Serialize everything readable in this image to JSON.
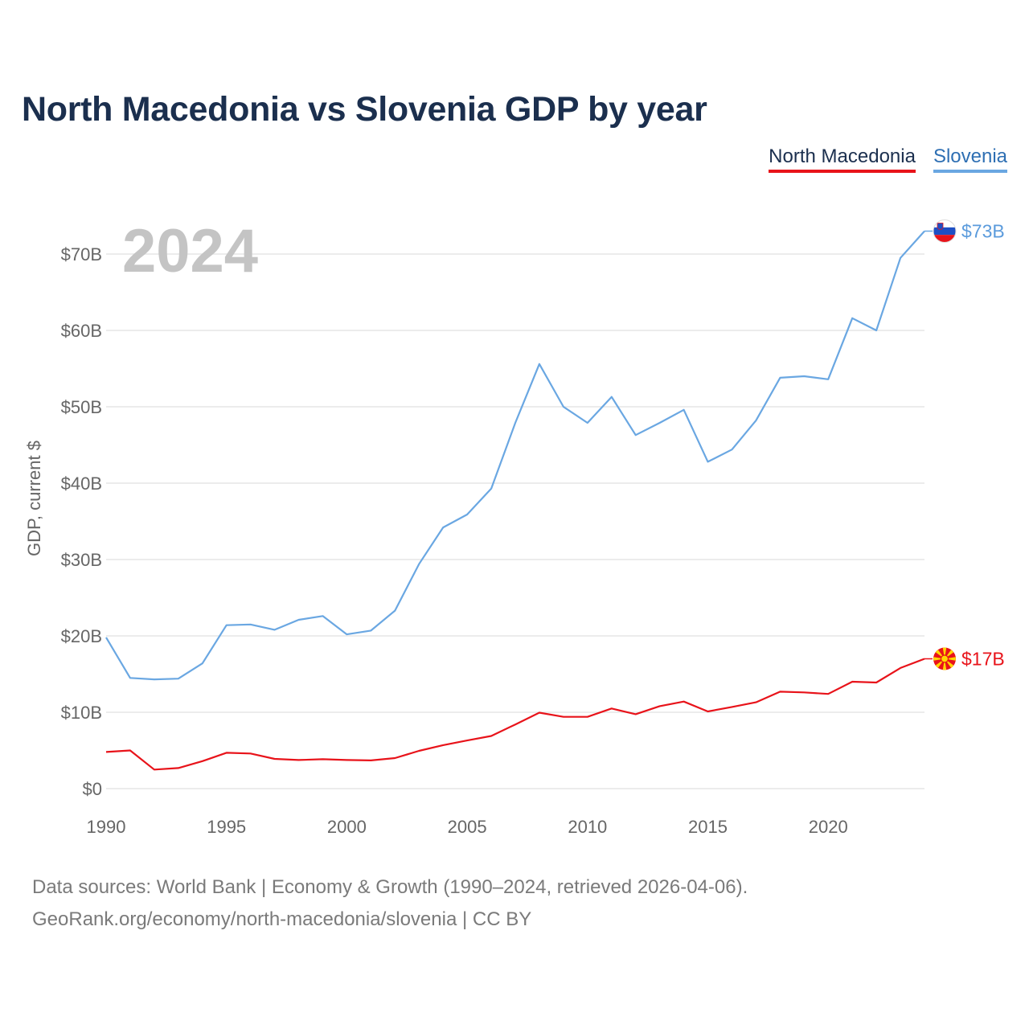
{
  "title": "North Macedonia vs Slovenia GDP by year",
  "legend": {
    "north_macedonia": "North Macedonia",
    "slovenia": "Slovenia"
  },
  "year_display": "2024",
  "footer": {
    "line1": "Data sources: World Bank | Economy & Growth (1990–2024, retrieved 2026-04-06).",
    "line2": "GeoRank.org/economy/north-macedonia/slovenia | CC BY"
  },
  "chart_data": {
    "type": "line",
    "title": "North Macedonia vs Slovenia GDP by year",
    "xlabel": "",
    "ylabel": "GDP, current $",
    "xlim": [
      1990,
      2024
    ],
    "ylim": [
      0,
      75
    ],
    "x_ticks": [
      1990,
      1995,
      2000,
      2005,
      2010,
      2015,
      2020
    ],
    "y_ticks": [
      0,
      10,
      20,
      30,
      40,
      50,
      60,
      70
    ],
    "y_tick_labels": [
      "$0",
      "$10B",
      "$20B",
      "$30B",
      "$40B",
      "$50B",
      "$60B",
      "$70B"
    ],
    "x": [
      1990,
      1991,
      1992,
      1993,
      1994,
      1995,
      1996,
      1997,
      1998,
      1999,
      2000,
      2001,
      2002,
      2003,
      2004,
      2005,
      2006,
      2007,
      2008,
      2009,
      2010,
      2011,
      2012,
      2013,
      2014,
      2015,
      2016,
      2017,
      2018,
      2019,
      2020,
      2021,
      2022,
      2023,
      2024
    ],
    "series": [
      {
        "name": "North Macedonia",
        "color": "#e8131a",
        "end_label": "$17B",
        "flag": "north-macedonia-flag",
        "values": [
          4.8,
          5.0,
          2.5,
          2.7,
          3.6,
          4.7,
          4.6,
          3.9,
          3.75,
          3.85,
          3.75,
          3.7,
          4.0,
          4.95,
          5.7,
          6.3,
          6.9,
          8.4,
          9.95,
          9.4,
          9.4,
          10.5,
          9.75,
          10.8,
          11.4,
          10.1,
          10.7,
          11.3,
          12.7,
          12.6,
          12.4,
          14.0,
          13.9,
          15.8,
          17.0
        ]
      },
      {
        "name": "Slovenia",
        "color": "#6aa7e2",
        "end_label": "$73B",
        "flag": "slovenia-flag",
        "values": [
          19.8,
          14.5,
          14.3,
          14.4,
          16.4,
          21.4,
          21.5,
          20.8,
          22.1,
          22.6,
          20.2,
          20.7,
          23.3,
          29.4,
          34.2,
          35.9,
          39.3,
          47.9,
          55.6,
          50.0,
          47.9,
          51.3,
          46.3,
          47.9,
          49.6,
          42.8,
          44.4,
          48.2,
          53.8,
          54.0,
          53.6,
          61.6,
          60.0,
          69.5,
          73.0
        ]
      }
    ]
  }
}
